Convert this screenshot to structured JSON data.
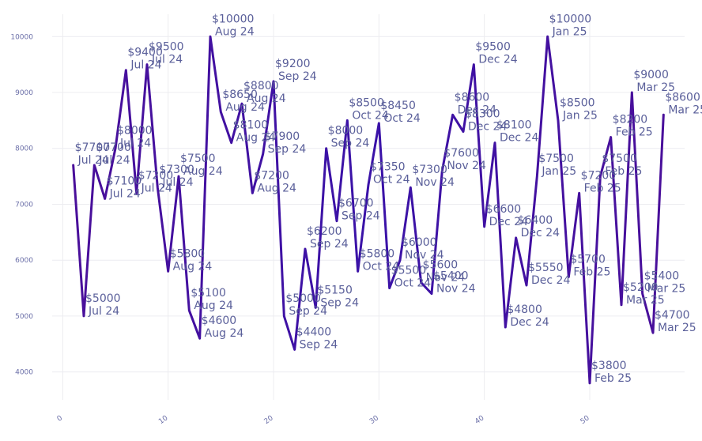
{
  "chart_data": {
    "type": "line",
    "title": "",
    "xlabel": "",
    "ylabel": "",
    "xlim": [
      -1,
      59
    ],
    "ylim": [
      3500,
      10400
    ],
    "xticks": [
      0,
      10,
      20,
      30,
      40,
      50
    ],
    "yticks": [
      4000,
      5000,
      6000,
      7000,
      8000,
      9000,
      10000
    ],
    "grid": true,
    "legend": "none",
    "line_color": "#3f0f9e",
    "points": [
      {
        "x": 1,
        "y": 7700,
        "value_label": "$7700",
        "date_label": "Jul 24"
      },
      {
        "x": 2,
        "y": 5000,
        "value_label": "$5000",
        "date_label": "Jul 24"
      },
      {
        "x": 3,
        "y": 7700,
        "value_label": "$7700",
        "date_label": "Jul 24"
      },
      {
        "x": 4,
        "y": 7100,
        "value_label": "$7100",
        "date_label": "Jul 24"
      },
      {
        "x": 5,
        "y": 8000,
        "value_label": "$8000",
        "date_label": "Jul 24"
      },
      {
        "x": 6,
        "y": 9400,
        "value_label": "$9400",
        "date_label": "Jul 24"
      },
      {
        "x": 7,
        "y": 7200,
        "value_label": "$7200",
        "date_label": "Jul 24"
      },
      {
        "x": 8,
        "y": 9500,
        "value_label": "$9500",
        "date_label": "Jul 24"
      },
      {
        "x": 9,
        "y": 7300,
        "value_label": "$7300",
        "date_label": "Jul 24"
      },
      {
        "x": 10,
        "y": 5800,
        "value_label": "$5800",
        "date_label": "Aug 24"
      },
      {
        "x": 11,
        "y": 7500,
        "value_label": "$7500",
        "date_label": "Aug 24"
      },
      {
        "x": 12,
        "y": 5100,
        "value_label": "$5100",
        "date_label": "Aug 24"
      },
      {
        "x": 13,
        "y": 4600,
        "value_label": "$4600",
        "date_label": "Aug 24"
      },
      {
        "x": 14,
        "y": 10000,
        "value_label": "$10000",
        "date_label": "Aug 24"
      },
      {
        "x": 15,
        "y": 8650,
        "value_label": "$8650",
        "date_label": "Aug 24"
      },
      {
        "x": 16,
        "y": 8100,
        "value_label": "$8100",
        "date_label": "Aug 24"
      },
      {
        "x": 17,
        "y": 8800,
        "value_label": "$8800",
        "date_label": "Aug 24"
      },
      {
        "x": 18,
        "y": 7200,
        "value_label": "$7200",
        "date_label": "Aug 24"
      },
      {
        "x": 19,
        "y": 7900,
        "value_label": "$7900",
        "date_label": "Sep 24"
      },
      {
        "x": 20,
        "y": 9200,
        "value_label": "$9200",
        "date_label": "Sep 24"
      },
      {
        "x": 21,
        "y": 5000,
        "value_label": "$5000",
        "date_label": "Sep 24"
      },
      {
        "x": 22,
        "y": 4400,
        "value_label": "$4400",
        "date_label": "Sep 24"
      },
      {
        "x": 23,
        "y": 6200,
        "value_label": "$6200",
        "date_label": "Sep 24"
      },
      {
        "x": 24,
        "y": 5150,
        "value_label": "$5150",
        "date_label": "Sep 24"
      },
      {
        "x": 25,
        "y": 8000,
        "value_label": "$8000",
        "date_label": "Sep 24"
      },
      {
        "x": 26,
        "y": 6700,
        "value_label": "$6700",
        "date_label": "Sep 24"
      },
      {
        "x": 27,
        "y": 8500,
        "value_label": "$8500",
        "date_label": "Oct 24"
      },
      {
        "x": 28,
        "y": 5800,
        "value_label": "$5800",
        "date_label": "Oct 24"
      },
      {
        "x": 29,
        "y": 7350,
        "value_label": "$7350",
        "date_label": "Oct 24"
      },
      {
        "x": 30,
        "y": 8450,
        "value_label": "$8450",
        "date_label": "Oct 24"
      },
      {
        "x": 31,
        "y": 5500,
        "value_label": "$5500",
        "date_label": "Oct 24"
      },
      {
        "x": 32,
        "y": 6000,
        "value_label": "$6000",
        "date_label": "Nov 24"
      },
      {
        "x": 33,
        "y": 7300,
        "value_label": "$7300",
        "date_label": "Nov 24"
      },
      {
        "x": 34,
        "y": 5600,
        "value_label": "$5600",
        "date_label": "Nov 24"
      },
      {
        "x": 35,
        "y": 5400,
        "value_label": "$5400",
        "date_label": "Nov 24"
      },
      {
        "x": 36,
        "y": 7600,
        "value_label": "$7600",
        "date_label": "Nov 24"
      },
      {
        "x": 37,
        "y": 8600,
        "value_label": "$8600",
        "date_label": "Dec 24"
      },
      {
        "x": 38,
        "y": 8300,
        "value_label": "$8300",
        "date_label": "Dec 24"
      },
      {
        "x": 39,
        "y": 9500,
        "value_label": "$9500",
        "date_label": "Dec 24"
      },
      {
        "x": 40,
        "y": 6600,
        "value_label": "$6600",
        "date_label": "Dec 24"
      },
      {
        "x": 41,
        "y": 8100,
        "value_label": "$8100",
        "date_label": "Dec 24"
      },
      {
        "x": 42,
        "y": 4800,
        "value_label": "$4800",
        "date_label": "Dec 24"
      },
      {
        "x": 43,
        "y": 6400,
        "value_label": "$6400",
        "date_label": "Dec 24"
      },
      {
        "x": 44,
        "y": 5550,
        "value_label": "$5550",
        "date_label": "Dec 24"
      },
      {
        "x": 45,
        "y": 7500,
        "value_label": "$7500",
        "date_label": "Jan 25"
      },
      {
        "x": 46,
        "y": 10000,
        "value_label": "$10000",
        "date_label": "Jan 25"
      },
      {
        "x": 47,
        "y": 8500,
        "value_label": "$8500",
        "date_label": "Jan 25"
      },
      {
        "x": 48,
        "y": 5700,
        "value_label": "$5700",
        "date_label": "Feb 25"
      },
      {
        "x": 49,
        "y": 7200,
        "value_label": "$7200",
        "date_label": "Feb 25"
      },
      {
        "x": 50,
        "y": 3800,
        "value_label": "$3800",
        "date_label": "Feb 25"
      },
      {
        "x": 51,
        "y": 7500,
        "value_label": "$7500",
        "date_label": "Feb 25"
      },
      {
        "x": 52,
        "y": 8200,
        "value_label": "$8200",
        "date_label": "Feb 25"
      },
      {
        "x": 53,
        "y": 5200,
        "value_label": "$5200",
        "date_label": "Mar 25"
      },
      {
        "x": 54,
        "y": 9000,
        "value_label": "$9000",
        "date_label": "Mar 25"
      },
      {
        "x": 55,
        "y": 5400,
        "value_label": "$5400",
        "date_label": "Mar 25"
      },
      {
        "x": 56,
        "y": 4700,
        "value_label": "$4700",
        "date_label": "Mar 25"
      },
      {
        "x": 57,
        "y": 8600,
        "value_label": "$8600",
        "date_label": "Mar 25"
      }
    ]
  }
}
